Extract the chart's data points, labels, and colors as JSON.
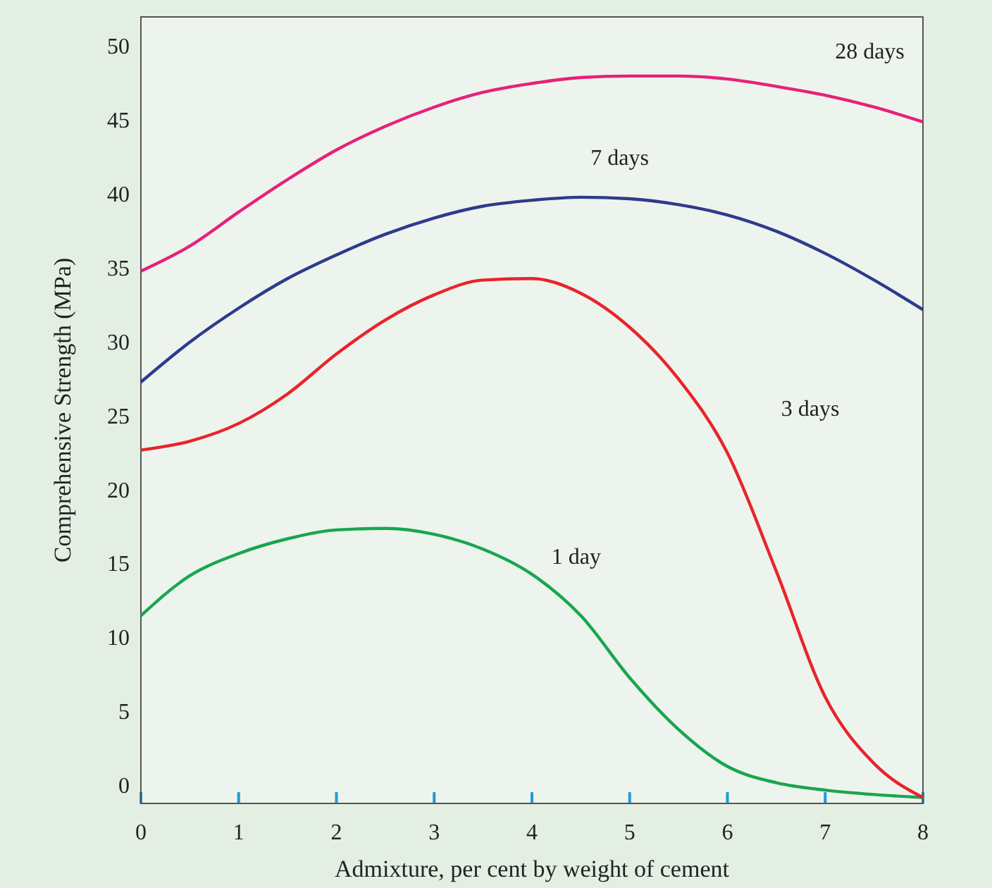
{
  "chart_data": {
    "type": "line",
    "xlabel": "Admixture, per cent by weight of cement",
    "ylabel": "Comprehensive Strength (MPa)",
    "x": [
      0,
      0.5,
      1,
      1.5,
      2,
      2.5,
      3,
      3.5,
      4,
      4.5,
      5,
      5.5,
      6,
      6.5,
      7,
      7.5,
      8
    ],
    "xlim": [
      0,
      8
    ],
    "xticks": [
      0,
      1,
      2,
      3,
      4,
      5,
      6,
      7,
      8
    ],
    "ylim": [
      -1.2,
      52
    ],
    "yticks": [
      0,
      5,
      10,
      15,
      20,
      25,
      30,
      35,
      40,
      45,
      50
    ],
    "grid": false,
    "legend": false,
    "marker": "none",
    "line_style": "solid",
    "series": [
      {
        "name": "1 day",
        "color": "#1aa550",
        "values": [
          11.5,
          14.2,
          15.7,
          16.7,
          17.3,
          17.4,
          17,
          16,
          14.3,
          11.5,
          7.3,
          3.8,
          1.3,
          0.2,
          -0.3,
          -0.6,
          -0.8
        ]
      },
      {
        "name": "3 days",
        "color": "#e8242c",
        "values": [
          22.7,
          23.3,
          24.5,
          26.5,
          29.2,
          31.5,
          33.2,
          34.2,
          34.3,
          33.3,
          31,
          27.5,
          22.5,
          14.5,
          6,
          1.5,
          -0.8
        ]
      },
      {
        "name": "7 days",
        "color": "#2e3a8c",
        "values": [
          27.3,
          30,
          32.3,
          34.3,
          35.9,
          37.3,
          38.4,
          39.2,
          39.6,
          39.8,
          39.7,
          39.3,
          38.6,
          37.5,
          36,
          34.2,
          32.2
        ]
      },
      {
        "name": "28 days",
        "color": "#e8207a",
        "values": [
          34.8,
          36.5,
          38.8,
          41,
          43,
          44.6,
          45.9,
          46.9,
          47.5,
          47.9,
          48,
          48,
          47.8,
          47.3,
          46.7,
          45.9,
          44.9
        ]
      }
    ]
  }
}
